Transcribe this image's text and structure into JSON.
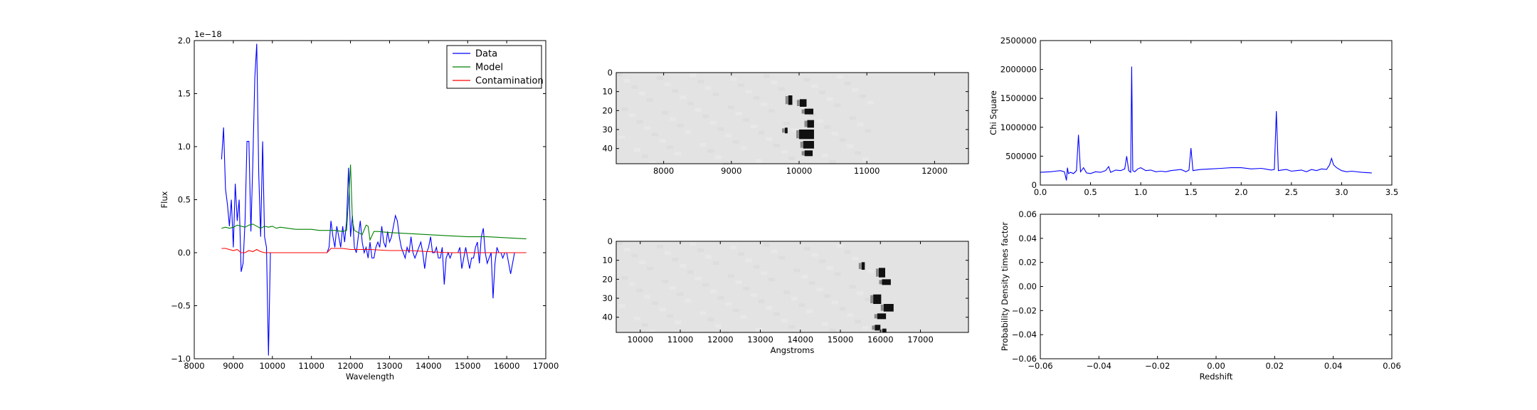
{
  "colors": {
    "data": "#0000ff",
    "model": "#008000",
    "contamination": "#ff0000",
    "image_bg": "#e3e3e3"
  },
  "chart_data": [
    {
      "id": "spectrum",
      "type": "line",
      "xlabel": "Wavelength",
      "ylabel": "Flux",
      "offset_text": "1e−18",
      "xlim": [
        8000,
        17000
      ],
      "ylim": [
        -1.0,
        2.0
      ],
      "xticks": [
        "8000",
        "9000",
        "10000",
        "11000",
        "12000",
        "13000",
        "14000",
        "15000",
        "16000",
        "17000"
      ],
      "yticks": [
        "−1.0",
        "−0.5",
        "0.0",
        "0.5",
        "1.0",
        "1.5",
        "2.0"
      ],
      "legend": {
        "position": "top-right",
        "entries": [
          "Data",
          "Model",
          "Contamination"
        ]
      },
      "series": [
        {
          "name": "Data",
          "color": "#0000ff",
          "x": [
            8700,
            8750,
            8800,
            8850,
            8900,
            8950,
            9000,
            9050,
            9100,
            9150,
            9200,
            9250,
            9300,
            9350,
            9400,
            9450,
            9500,
            9550,
            9600,
            9650,
            9700,
            9750,
            9800,
            9850,
            9900,
            9950,
            10000,
            10050,
            10100,
            10200,
            10400,
            10600,
            10800,
            11000,
            11200,
            11300,
            11400,
            11450,
            11500,
            11550,
            11600,
            11650,
            11700,
            11750,
            11800,
            11850,
            11900,
            11950,
            12000,
            12050,
            12100,
            12150,
            12200,
            12250,
            12300,
            12350,
            12400,
            12450,
            12500,
            12550,
            12600,
            12650,
            12700,
            12750,
            12800,
            12850,
            12900,
            12950,
            13000,
            13050,
            13100,
            13150,
            13200,
            13250,
            13300,
            13350,
            13400,
            13450,
            13500,
            13550,
            13600,
            13650,
            13700,
            13750,
            13800,
            13850,
            13900,
            13950,
            14000,
            14050,
            14100,
            14150,
            14200,
            14250,
            14300,
            14350,
            14400,
            14450,
            14500,
            14550,
            14600,
            14650,
            14700,
            14750,
            14800,
            14850,
            14900,
            14950,
            15000,
            15050,
            15100,
            15150,
            15200,
            15250,
            15300,
            15350,
            15400,
            15450,
            15500,
            15550,
            15600,
            15650,
            15700,
            15750,
            15800,
            15850,
            15900,
            15950,
            16000,
            16100,
            16200,
            16300,
            16400,
            16500
          ],
          "y": [
            0.88,
            1.18,
            0.6,
            0.45,
            0.25,
            0.5,
            0.05,
            0.65,
            0.3,
            0.5,
            -0.18,
            -0.1,
            0.3,
            1.05,
            1.05,
            0.2,
            0.85,
            1.65,
            1.97,
            0.75,
            0.15,
            1.05,
            0.15,
            0.05,
            -0.97,
            0.0,
            0.0,
            0.0,
            0.0,
            0.0,
            0.0,
            0.0,
            0.0,
            0.0,
            0.0,
            0.0,
            0.0,
            0.05,
            0.3,
            0.15,
            0.05,
            0.25,
            0.15,
            0.05,
            0.25,
            0.1,
            0.3,
            0.8,
            0.15,
            0.35,
            0.05,
            0.0,
            0.15,
            0.3,
            0.1,
            0.0,
            0.05,
            -0.05,
            0.1,
            -0.05,
            -0.05,
            0.05,
            0.1,
            0.05,
            0.25,
            0.1,
            0.05,
            0.2,
            0.1,
            0.15,
            0.25,
            0.35,
            0.3,
            0.15,
            0.05,
            0.0,
            -0.05,
            0.05,
            0.0,
            0.15,
            0.0,
            -0.05,
            0.0,
            0.05,
            0.1,
            0.0,
            -0.15,
            0.0,
            0.05,
            0.15,
            0.0,
            0.0,
            0.05,
            -0.05,
            -0.05,
            0.05,
            -0.3,
            -0.05,
            0.0,
            -0.05,
            0.0,
            0.0,
            0.0,
            0.0,
            0.05,
            -0.15,
            -0.05,
            0.05,
            -0.05,
            -0.15,
            -0.05,
            -0.05,
            0.05,
            0.1,
            -0.1,
            0.15,
            0.23,
            0.0,
            -0.1,
            -0.05,
            0.0,
            -0.43,
            -0.1,
            0.05,
            0.0,
            0.0,
            -0.05,
            0.0,
            0.0,
            -0.2,
            0.0,
            0.0,
            0.0,
            0.0
          ]
        },
        {
          "name": "Model",
          "color": "#008000",
          "x": [
            8700,
            8800,
            8900,
            9000,
            9100,
            9200,
            9300,
            9400,
            9500,
            9600,
            9700,
            9800,
            9900,
            10000,
            10100,
            10200,
            10400,
            10600,
            10800,
            11000,
            11200,
            11400,
            11600,
            11800,
            11900,
            11950,
            12000,
            12050,
            12100,
            12200,
            12300,
            12400,
            12450,
            12500,
            12600,
            12700,
            13000,
            13500,
            14000,
            14500,
            15000,
            15500,
            16000,
            16500
          ],
          "y": [
            0.23,
            0.24,
            0.23,
            0.24,
            0.26,
            0.25,
            0.24,
            0.26,
            0.27,
            0.25,
            0.23,
            0.25,
            0.24,
            0.25,
            0.23,
            0.24,
            0.23,
            0.22,
            0.22,
            0.22,
            0.21,
            0.21,
            0.21,
            0.2,
            0.21,
            0.5,
            0.83,
            0.3,
            0.21,
            0.19,
            0.17,
            0.26,
            0.25,
            0.12,
            0.2,
            0.2,
            0.19,
            0.18,
            0.17,
            0.16,
            0.15,
            0.15,
            0.14,
            0.13
          ]
        },
        {
          "name": "Contamination",
          "color": "#ff0000",
          "x": [
            8700,
            8800,
            8900,
            9000,
            9100,
            9200,
            9300,
            9400,
            9500,
            9600,
            9700,
            9800,
            9900,
            10000,
            10500,
            11000,
            11400,
            11500,
            11800,
            12000,
            12500,
            13000,
            13500,
            14000,
            14500,
            15000,
            15500,
            16000,
            16500
          ],
          "y": [
            0.04,
            0.04,
            0.03,
            0.02,
            0.03,
            0.0,
            0.0,
            0.02,
            0.01,
            0.03,
            0.01,
            0.0,
            0.0,
            0.0,
            0.0,
            0.0,
            0.0,
            0.04,
            0.04,
            0.03,
            0.03,
            0.02,
            0.02,
            0.01,
            0.0,
            0.0,
            0.0,
            0.0,
            0.0
          ]
        }
      ]
    },
    {
      "id": "image-top",
      "type": "heatmap",
      "xlim": [
        7300,
        12500
      ],
      "ylim": [
        48,
        0
      ],
      "xticks": [
        "8000",
        "9000",
        "10000",
        "11000",
        "12000"
      ],
      "yticks": [
        "0",
        "10",
        "20",
        "30",
        "40"
      ],
      "xlabel": "",
      "blobs": [
        {
          "x": 9840,
          "y": 12,
          "w": 60,
          "h": 5
        },
        {
          "x": 10010,
          "y": 14,
          "w": 100,
          "h": 4
        },
        {
          "x": 10080,
          "y": 19,
          "w": 130,
          "h": 3
        },
        {
          "x": 10120,
          "y": 25,
          "w": 100,
          "h": 4
        },
        {
          "x": 10000,
          "y": 30,
          "w": 220,
          "h": 5
        },
        {
          "x": 10060,
          "y": 36,
          "w": 160,
          "h": 4
        },
        {
          "x": 10080,
          "y": 41,
          "w": 120,
          "h": 3
        },
        {
          "x": 9790,
          "y": 29,
          "w": 40,
          "h": 3
        }
      ]
    },
    {
      "id": "image-bottom",
      "type": "heatmap",
      "xlim": [
        9400,
        18200
      ],
      "ylim": [
        48,
        0
      ],
      "xticks": [
        "10000",
        "11000",
        "12000",
        "13000",
        "14000",
        "15000",
        "16000",
        "17000"
      ],
      "yticks": [
        "0",
        "10",
        "20",
        "30",
        "40"
      ],
      "xlabel": "Angstroms",
      "blobs": [
        {
          "x": 15530,
          "y": 11,
          "w": 80,
          "h": 4
        },
        {
          "x": 15960,
          "y": 14,
          "w": 160,
          "h": 5
        },
        {
          "x": 16040,
          "y": 20,
          "w": 220,
          "h": 3
        },
        {
          "x": 15820,
          "y": 28,
          "w": 200,
          "h": 5
        },
        {
          "x": 16080,
          "y": 33,
          "w": 250,
          "h": 4
        },
        {
          "x": 15920,
          "y": 38,
          "w": 220,
          "h": 3
        },
        {
          "x": 15860,
          "y": 44,
          "w": 140,
          "h": 3
        },
        {
          "x": 16050,
          "y": 46,
          "w": 100,
          "h": 2
        }
      ]
    },
    {
      "id": "chisq",
      "type": "line",
      "xlabel": "",
      "ylabel": "Chi Square",
      "xlim": [
        0.0,
        3.5
      ],
      "ylim": [
        0,
        2500000
      ],
      "xticks": [
        "0.0",
        "0.5",
        "1.0",
        "1.5",
        "2.0",
        "2.5",
        "3.0",
        "3.5"
      ],
      "yticks": [
        "0",
        "500000",
        "1000000",
        "1500000",
        "2000000",
        "2500000"
      ],
      "series": [
        {
          "name": "",
          "color": "#0000ff",
          "x": [
            0.0,
            0.05,
            0.1,
            0.15,
            0.2,
            0.24,
            0.26,
            0.27,
            0.28,
            0.3,
            0.33,
            0.36,
            0.38,
            0.4,
            0.43,
            0.46,
            0.5,
            0.55,
            0.6,
            0.65,
            0.68,
            0.7,
            0.75,
            0.8,
            0.84,
            0.86,
            0.88,
            0.9,
            0.91,
            0.92,
            0.94,
            0.97,
            1.0,
            1.05,
            1.1,
            1.15,
            1.2,
            1.25,
            1.3,
            1.35,
            1.4,
            1.45,
            1.48,
            1.5,
            1.52,
            1.55,
            1.6,
            1.7,
            1.8,
            1.9,
            2.0,
            2.1,
            2.2,
            2.3,
            2.33,
            2.35,
            2.37,
            2.4,
            2.45,
            2.5,
            2.55,
            2.6,
            2.65,
            2.7,
            2.75,
            2.8,
            2.85,
            2.88,
            2.9,
            2.92,
            2.95,
            3.0,
            3.05,
            3.1,
            3.2,
            3.3
          ],
          "y": [
            220000,
            225000,
            230000,
            240000,
            250000,
            230000,
            80000,
            300000,
            200000,
            220000,
            200000,
            250000,
            870000,
            230000,
            300000,
            210000,
            200000,
            230000,
            220000,
            250000,
            320000,
            220000,
            260000,
            250000,
            280000,
            500000,
            250000,
            220000,
            2050000,
            250000,
            230000,
            280000,
            300000,
            250000,
            260000,
            230000,
            240000,
            230000,
            250000,
            260000,
            270000,
            230000,
            260000,
            640000,
            250000,
            260000,
            270000,
            280000,
            290000,
            300000,
            300000,
            280000,
            290000,
            260000,
            270000,
            1280000,
            250000,
            260000,
            270000,
            240000,
            250000,
            260000,
            230000,
            270000,
            250000,
            280000,
            270000,
            350000,
            460000,
            350000,
            300000,
            250000,
            230000,
            240000,
            220000,
            210000
          ]
        }
      ]
    },
    {
      "id": "pdf",
      "type": "line",
      "xlabel": "Redshift",
      "ylabel": "Probability Density times factor",
      "xlim": [
        -0.06,
        0.06
      ],
      "ylim": [
        -0.06,
        0.06
      ],
      "xticks": [
        "−0.06",
        "−0.04",
        "−0.02",
        "0.00",
        "0.02",
        "0.04",
        "0.06"
      ],
      "yticks": [
        "−0.06",
        "−0.04",
        "−0.02",
        "0.00",
        "0.02",
        "0.04",
        "0.06"
      ],
      "series": []
    }
  ]
}
